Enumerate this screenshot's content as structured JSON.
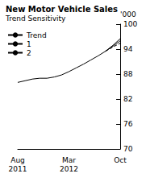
{
  "chart_data": {
    "type": "line",
    "title": "New Motor Vehicle Sales",
    "subtitle": "Trend Sensitivity",
    "ylabel": "'000",
    "categories": [
      "Aug\n2011",
      null,
      null,
      null,
      null,
      null,
      null,
      "Mar\n2012",
      null,
      null,
      null,
      null,
      null,
      null,
      "Oct"
    ],
    "series": [
      {
        "name": "Trend",
        "color": "#000000",
        "line_style": "solid",
        "values": [
          86.0,
          86.4,
          86.8,
          87.0,
          87.0,
          87.3,
          87.8,
          88.6,
          89.5,
          90.4,
          91.4,
          92.4,
          93.5,
          94.7,
          96.0
        ]
      },
      {
        "name": "1",
        "color": "#000000",
        "line_style": "solid",
        "values": [
          null,
          null,
          null,
          null,
          null,
          null,
          null,
          null,
          null,
          null,
          null,
          null,
          93.5,
          94.9,
          96.5
        ]
      },
      {
        "name": "2",
        "color": "#000000",
        "line_style": "dashed",
        "values": [
          null,
          null,
          null,
          null,
          null,
          null,
          null,
          null,
          null,
          null,
          null,
          null,
          93.5,
          94.5,
          95.4
        ]
      }
    ],
    "ylim": [
      70,
      100
    ],
    "yticks": [
      70,
      76,
      82,
      88,
      94,
      100
    ],
    "grid": false,
    "legend": "top-left"
  }
}
